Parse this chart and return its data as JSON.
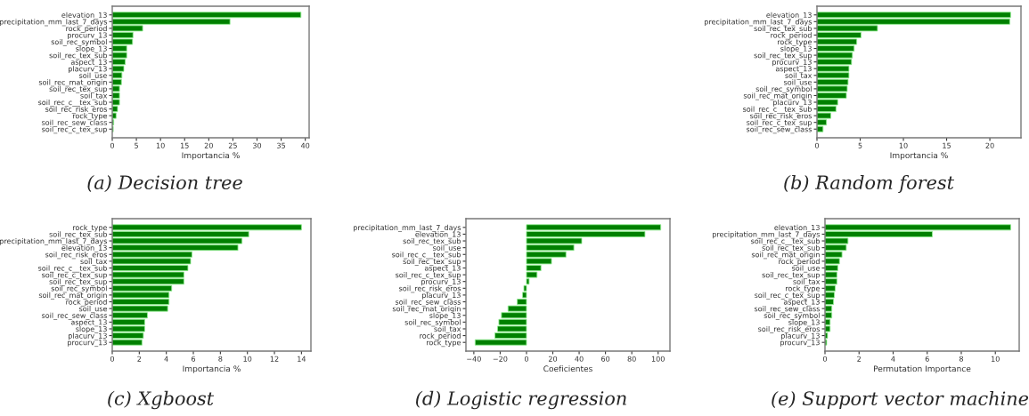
{
  "chart_data": [
    {
      "type": "bar",
      "orientation": "horizontal",
      "title": "(a) Decision tree",
      "xlabel": "Importancia %",
      "categories": [
        "elevation_13",
        "precipitation_mm_last_7_days",
        "rock_period",
        "procurv_13",
        "soil_rec_symbol",
        "slope_13",
        "soil_rec_tex_sub",
        "aspect_13",
        "placurv_13",
        "soil_use",
        "soil_rec_mat_origin",
        "soil_rec_tex_sup",
        "soil_tax",
        "soil_rec_c__tex_sub",
        "soil_rec_risk_eros",
        "rock_type",
        "soil_rec_sew_class",
        "soil_rec_c_tex_sup"
      ],
      "values": [
        39.1,
        24.4,
        6.3,
        4.3,
        4.2,
        3.0,
        3.0,
        2.7,
        2.4,
        2.0,
        1.9,
        1.5,
        1.5,
        1.5,
        1.1,
        0.8,
        0.3,
        0.2
      ],
      "color": "#008000",
      "xlim": [
        0,
        40.8
      ],
      "xticks": [
        0,
        5,
        10,
        15,
        20,
        25,
        30,
        35,
        40
      ],
      "grid": false
    },
    {
      "type": "bar",
      "orientation": "horizontal",
      "title": "(b) Random forest",
      "xlabel": "Importancia %",
      "categories": [
        "elevation_13",
        "precipitation_mm_last_7_days",
        "soil_rec_tex_sub",
        "rock_period",
        "rock_type",
        "slope_13",
        "soil_rec_tex_sup",
        "procurv_13",
        "aspect_13",
        "soil_tax",
        "soil_use",
        "soil_rec_symbol",
        "soil_rec_mat_origin",
        "placurv_13",
        "soil_rec_c__tex_sub",
        "soil_rec_risk_eros",
        "soil_rec_c_tex_sup",
        "soil_rec_sew_class"
      ],
      "values": [
        22.4,
        22.3,
        7.0,
        5.1,
        4.6,
        4.3,
        4.1,
        4.0,
        3.7,
        3.7,
        3.6,
        3.5,
        3.4,
        2.4,
        2.2,
        1.6,
        1.1,
        0.7
      ],
      "color": "#008000",
      "xlim": [
        0,
        23.6
      ],
      "xticks": [
        0,
        5,
        10,
        15,
        20
      ],
      "grid": false
    },
    {
      "type": "bar",
      "orientation": "horizontal",
      "title": "(c) Xgboost",
      "xlabel": "Importancia %",
      "categories": [
        "rock_type",
        "soil_rec_tex_sub",
        "precipitation_mm_last_7_days",
        "elevation_13",
        "soil_rec_risk_eros",
        "soil_tax",
        "soil_rec_c__tex_sub",
        "soil_rec_c_tex_sup",
        "soil_rec_tex_sup",
        "soil_rec_symbol",
        "soil_rec_mat_origin",
        "rock_period",
        "soil_use",
        "soil_rec_sew_class",
        "aspect_13",
        "slope_13",
        "placurv_13",
        "procurv_13"
      ],
      "values": [
        14.0,
        10.1,
        9.6,
        9.3,
        5.9,
        5.8,
        5.6,
        5.3,
        5.3,
        4.4,
        4.2,
        4.2,
        4.1,
        2.6,
        2.4,
        2.4,
        2.3,
        2.2
      ],
      "color": "#008000",
      "xlim": [
        0,
        14.7
      ],
      "xticks": [
        0,
        2,
        4,
        6,
        8,
        10,
        12,
        14
      ],
      "grid": false
    },
    {
      "type": "bar",
      "orientation": "horizontal",
      "title": "(d) Logistic regression",
      "xlabel": "Coeficientes",
      "categories": [
        "precipitation_mm_last_7_days",
        "elevation_13",
        "soil_rec_tex_sub",
        "soil_use",
        "soil_rec_c__tex_sub",
        "soil_rec_tex_sup",
        "aspect_13",
        "soil_rec_c_tex_sup",
        "procurv_13",
        "soil_rec_risk_eros",
        "placurv_13",
        "soil_rec_sew_class",
        "soil_rec_mat_origin",
        "slope_13",
        "soil_rec_symbol",
        "soil_tax",
        "rock_period",
        "rock_type"
      ],
      "values": [
        102,
        90,
        42,
        36,
        30,
        19,
        11,
        8,
        2,
        -2,
        -3,
        -7,
        -14,
        -19,
        -21,
        -22,
        -24,
        -39
      ],
      "color": "#008000",
      "xlim": [
        -46,
        109
      ],
      "xticks": [
        {
          "value": -40,
          "label": "−40"
        },
        {
          "value": -20,
          "label": "−20"
        },
        0,
        20,
        40,
        60,
        80,
        100
      ],
      "grid": false
    },
    {
      "type": "bar",
      "orientation": "horizontal",
      "title": "(e) Support vector machine",
      "xlabel": "Permutation Importance",
      "categories": [
        "elevation_13",
        "precipitation_mm_last_7_days",
        "soil_rec_c__tex_sub",
        "soil_rec_tex_sub",
        "soil_rec_mat_origin",
        "rock_period",
        "soil_use",
        "soil_rec_tex_sup",
        "soil_tax",
        "rock_type",
        "soil_rec_c_tex_sup",
        "aspect_13",
        "soil_rec_sew_class",
        "soil_rec_symbol",
        "slope_13",
        "soil_rec_risk_eros",
        "placurv_13",
        "procurv_13"
      ],
      "values": [
        10.9,
        6.3,
        1.35,
        1.25,
        1.0,
        0.85,
        0.75,
        0.7,
        0.7,
        0.6,
        0.55,
        0.5,
        0.4,
        0.4,
        0.3,
        0.3,
        0.15,
        0.1
      ],
      "color": "#008000",
      "xlim": [
        0,
        11.4
      ],
      "xticks": [
        0,
        2,
        4,
        6,
        8,
        10
      ],
      "grid": false
    }
  ]
}
